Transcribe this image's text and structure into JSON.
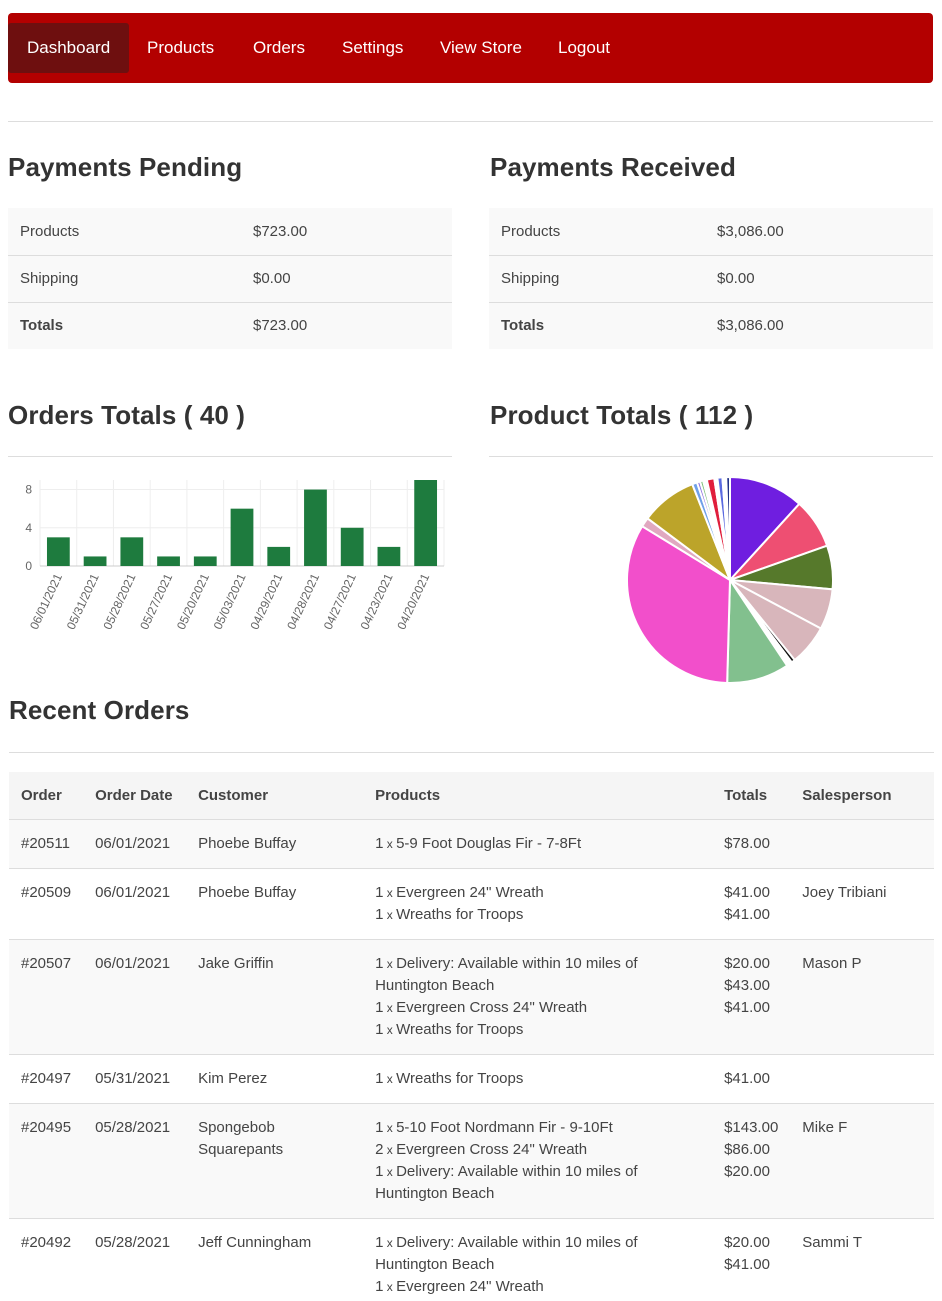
{
  "nav": {
    "items": [
      "Dashboard",
      "Products",
      "Orders",
      "Settings",
      "View Store",
      "Logout"
    ],
    "active": "Dashboard"
  },
  "payments_pending": {
    "title": "Payments Pending",
    "rows": [
      {
        "label": "Products",
        "value": "$723.00"
      },
      {
        "label": "Shipping",
        "value": "$0.00"
      },
      {
        "label": "Totals",
        "value": "$723.00"
      }
    ]
  },
  "payments_received": {
    "title": "Payments Received",
    "rows": [
      {
        "label": "Products",
        "value": "$3,086.00"
      },
      {
        "label": "Shipping",
        "value": "$0.00"
      },
      {
        "label": "Totals",
        "value": "$3,086.00"
      }
    ]
  },
  "orders_totals": {
    "title": "Orders Totals ( 40 )"
  },
  "product_totals": {
    "title": "Product Totals ( 112 )"
  },
  "chart_data": [
    {
      "type": "bar",
      "categories": [
        "06/01/2021",
        "05/31/2021",
        "05/28/2021",
        "05/27/2021",
        "05/20/2021",
        "05/03/2021",
        "04/29/2021",
        "04/28/2021",
        "04/27/2021",
        "04/23/2021",
        "04/20/2021"
      ],
      "values": [
        3,
        1,
        3,
        1,
        1,
        6,
        2,
        8,
        4,
        2,
        9
      ],
      "ylim": [
        0,
        9
      ],
      "yticks": [
        "0",
        "4",
        "8"
      ],
      "grid": true,
      "color": "#1e7b3e"
    },
    {
      "type": "pie",
      "values": [
        12,
        8,
        7,
        6.5,
        6.5,
        0.6,
        0.9,
        10,
        34,
        1.5,
        9,
        0.8,
        0.5,
        0.5,
        0.6,
        1.2,
        0.5,
        0.8,
        0.6,
        0.6
      ],
      "colors": [
        "#6f1ee0",
        "#ee4f72",
        "#56792b",
        "#d8b6bb",
        "#d8b6bb",
        "#111111",
        "#ffffff",
        "#82c08e",
        "#f24fcb",
        "#e0a8c0",
        "#bca42a",
        "#6fa0e8",
        "#8a6fe0",
        "#7fc07a",
        "#ffffff",
        "#e01e3c",
        "#ffffff",
        "#5a6ae0",
        "#ffffff",
        "#223388"
      ]
    }
  ],
  "recent_orders": {
    "title": "Recent Orders",
    "headers": [
      "Order",
      "Order Date",
      "Customer",
      "Products",
      "Totals",
      "Salesperson"
    ],
    "rows": [
      {
        "order": "#20511",
        "date": "06/01/2021",
        "customer": "Phoebe Buffay",
        "products": [
          {
            "qty": "1",
            "name": "5-9 Foot Douglas Fir - 7-8Ft"
          }
        ],
        "totals": [
          "$78.00"
        ],
        "salesperson": ""
      },
      {
        "order": "#20509",
        "date": "06/01/2021",
        "customer": "Phoebe Buffay",
        "products": [
          {
            "qty": "1",
            "name": "Evergreen 24\" Wreath"
          },
          {
            "qty": "1",
            "name": "Wreaths for Troops"
          }
        ],
        "totals": [
          "$41.00",
          "$41.00"
        ],
        "salesperson": "Joey Tribiani"
      },
      {
        "order": "#20507",
        "date": "06/01/2021",
        "customer": "Jake Griffin",
        "products": [
          {
            "qty": "1",
            "name": "Delivery: Available within 10 miles of Huntington Beach"
          },
          {
            "qty": "1",
            "name": "Evergreen Cross 24\" Wreath"
          },
          {
            "qty": "1",
            "name": "Wreaths for Troops"
          }
        ],
        "totals": [
          "$20.00",
          "$43.00",
          "$41.00"
        ],
        "salesperson": "Mason P"
      },
      {
        "order": "#20497",
        "date": "05/31/2021",
        "customer": "Kim Perez",
        "products": [
          {
            "qty": "1",
            "name": "Wreaths for Troops"
          }
        ],
        "totals": [
          "$41.00"
        ],
        "salesperson": ""
      },
      {
        "order": "#20495",
        "date": "05/28/2021",
        "customer": "Spongebob Squarepants",
        "products": [
          {
            "qty": "1",
            "name": "5-10 Foot Nordmann Fir - 9-10Ft"
          },
          {
            "qty": "2",
            "name": "Evergreen Cross 24\" Wreath"
          },
          {
            "qty": "1",
            "name": "Delivery: Available within 10 miles of Huntington Beach"
          }
        ],
        "totals": [
          "$143.00",
          "$86.00",
          "$20.00"
        ],
        "salesperson": "Mike F"
      },
      {
        "order": "#20492",
        "date": "05/28/2021",
        "customer": "Jeff Cunningham",
        "products": [
          {
            "qty": "1",
            "name": "Delivery: Available within 10 miles of Huntington Beach"
          },
          {
            "qty": "1",
            "name": "Evergreen 24\" Wreath"
          }
        ],
        "totals": [
          "$20.00",
          "$41.00"
        ],
        "salesperson": "Sammi T"
      }
    ]
  }
}
